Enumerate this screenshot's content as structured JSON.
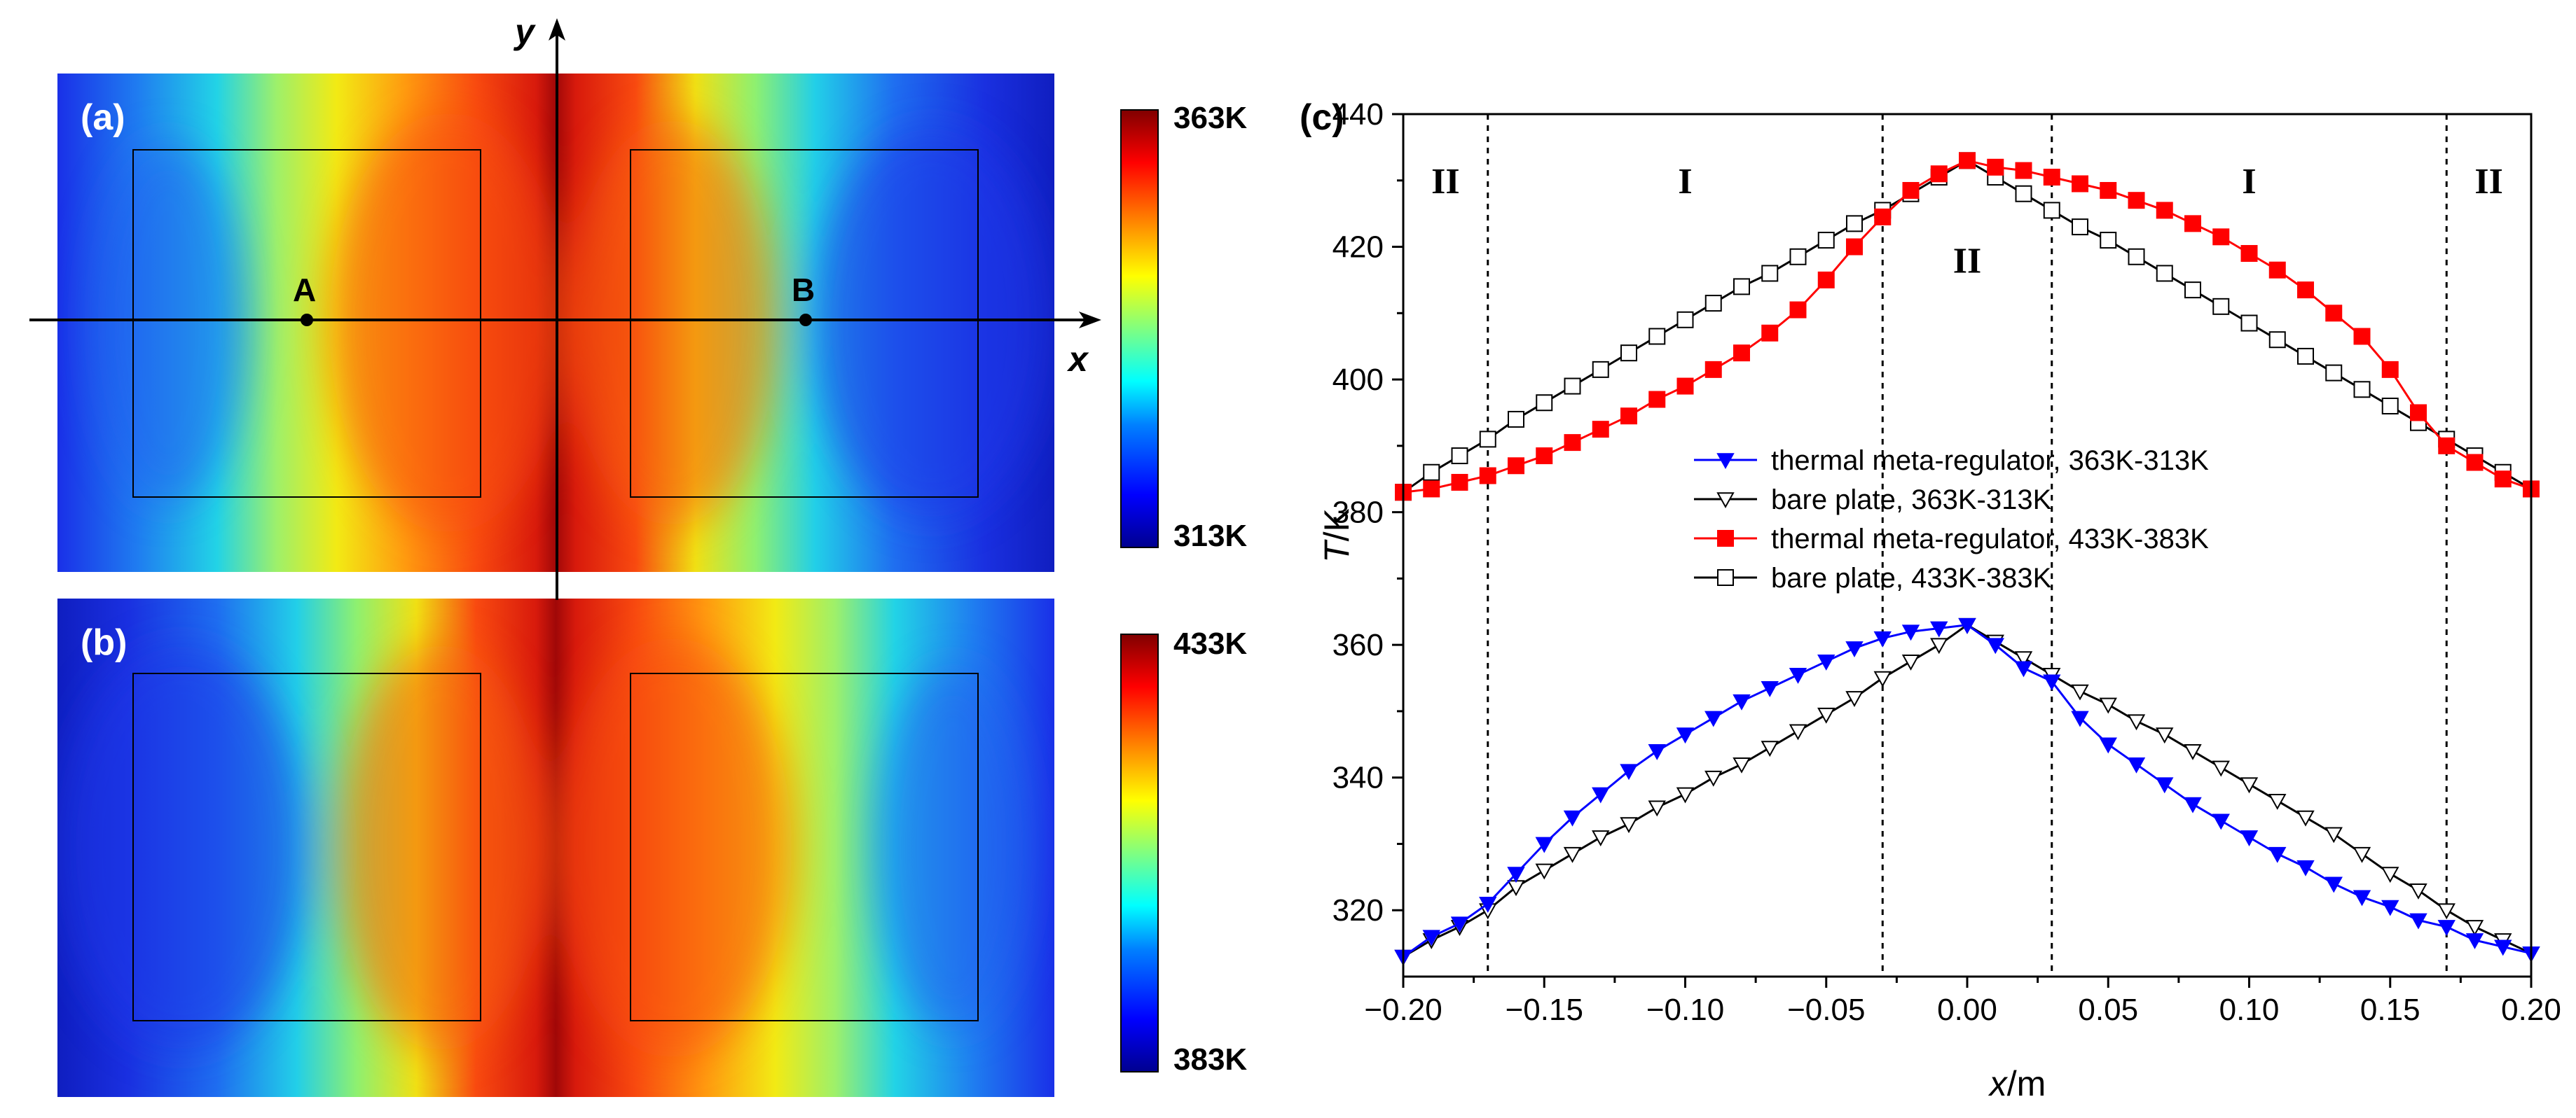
{
  "panel_a": {
    "label": "(a)",
    "point_a": "A",
    "point_b": "B",
    "axis_x": "x",
    "axis_y": "y",
    "colorbar": {
      "max": "363K",
      "min": "313K"
    }
  },
  "panel_b": {
    "label": "(b)",
    "colorbar": {
      "max": "433K",
      "min": "383K"
    }
  },
  "colors": {
    "blue_series": "#0000ff",
    "red_series": "#ff0000",
    "black_series": "#000000"
  },
  "chart_data": {
    "type": "line",
    "panel_label": "(c)",
    "title": "",
    "xlabel_var": "x",
    "xlabel_unit": "/m",
    "ylabel_var": "T",
    "ylabel_unit": "/K",
    "xlim": [
      -0.2,
      0.2
    ],
    "ylim": [
      310,
      440
    ],
    "xticks": [
      -0.2,
      -0.15,
      -0.1,
      -0.05,
      0.0,
      0.05,
      0.1,
      0.15,
      0.2
    ],
    "xtick_labels": [
      "−0.20",
      "−0.15",
      "−0.10",
      "−0.05",
      "0.00",
      "0.05",
      "0.10",
      "0.15",
      "0.20"
    ],
    "yticks": [
      320,
      340,
      360,
      380,
      400,
      420,
      440
    ],
    "ytick_labels": [
      "320",
      "340",
      "360",
      "380",
      "400",
      "420",
      "440"
    ],
    "region_dividers": [
      -0.17,
      -0.03,
      0.03,
      0.17
    ],
    "region_labels": [
      {
        "text": "II",
        "x": -0.185,
        "y": 430
      },
      {
        "text": "I",
        "x": -0.1,
        "y": 430
      },
      {
        "text": "II",
        "x": 0.0,
        "y": 418
      },
      {
        "text": "I",
        "x": 0.1,
        "y": 430
      },
      {
        "text": "II",
        "x": 0.185,
        "y": 430
      }
    ],
    "legend_position": "center",
    "series": [
      {
        "name": "thermal meta-regulator, 363K-313K",
        "color": "#0000ff",
        "marker": "triangle-down-filled",
        "x": [
          -0.2,
          -0.19,
          -0.18,
          -0.17,
          -0.16,
          -0.15,
          -0.14,
          -0.13,
          -0.12,
          -0.11,
          -0.1,
          -0.09,
          -0.08,
          -0.07,
          -0.06,
          -0.05,
          -0.04,
          -0.03,
          -0.02,
          -0.01,
          0.0,
          0.01,
          0.02,
          0.03,
          0.04,
          0.05,
          0.06,
          0.07,
          0.08,
          0.09,
          0.1,
          0.11,
          0.12,
          0.13,
          0.14,
          0.15,
          0.16,
          0.17,
          0.18,
          0.19,
          0.2
        ],
        "y": [
          313,
          316,
          318,
          321,
          325.5,
          330,
          334,
          337.5,
          341,
          344,
          346.5,
          349,
          351.5,
          353.5,
          355.5,
          357.5,
          359.5,
          361,
          362,
          362.5,
          363,
          360,
          356.5,
          354.5,
          349,
          345,
          342,
          339,
          336,
          333.5,
          331,
          328.5,
          326.5,
          324,
          322,
          320.5,
          318.5,
          317.5,
          315.5,
          314.5,
          313.5
        ]
      },
      {
        "name": "bare plate, 363K-313K",
        "color": "#000000",
        "marker": "triangle-down-open",
        "x": [
          -0.2,
          -0.19,
          -0.18,
          -0.17,
          -0.16,
          -0.15,
          -0.14,
          -0.13,
          -0.12,
          -0.11,
          -0.1,
          -0.09,
          -0.08,
          -0.07,
          -0.06,
          -0.05,
          -0.04,
          -0.03,
          -0.02,
          -0.01,
          0.0,
          0.01,
          0.02,
          0.03,
          0.04,
          0.05,
          0.06,
          0.07,
          0.08,
          0.09,
          0.1,
          0.11,
          0.12,
          0.13,
          0.14,
          0.15,
          0.16,
          0.17,
          0.18,
          0.19,
          0.2
        ],
        "y": [
          313,
          315.5,
          317.5,
          320,
          323.5,
          326,
          328.5,
          331,
          333,
          335.5,
          337.5,
          340,
          342,
          344.5,
          347,
          349.5,
          352,
          355,
          357.5,
          360,
          363,
          360.5,
          358,
          355.5,
          353,
          351,
          348.5,
          346.5,
          344,
          341.5,
          339,
          336.5,
          334,
          331.5,
          328.5,
          325.5,
          323,
          320,
          317.5,
          315.5,
          313.5
        ]
      },
      {
        "name": "thermal meta-regulator, 433K-383K",
        "color": "#ff0000",
        "marker": "square-filled",
        "x": [
          -0.2,
          -0.19,
          -0.18,
          -0.17,
          -0.16,
          -0.15,
          -0.14,
          -0.13,
          -0.12,
          -0.11,
          -0.1,
          -0.09,
          -0.08,
          -0.07,
          -0.06,
          -0.05,
          -0.04,
          -0.03,
          -0.02,
          -0.01,
          0.0,
          0.01,
          0.02,
          0.03,
          0.04,
          0.05,
          0.06,
          0.07,
          0.08,
          0.09,
          0.1,
          0.11,
          0.12,
          0.13,
          0.14,
          0.15,
          0.16,
          0.17,
          0.18,
          0.19,
          0.2
        ],
        "y": [
          383,
          383.5,
          384.5,
          385.5,
          387,
          388.5,
          390.5,
          392.5,
          394.5,
          397,
          399,
          401.5,
          404,
          407,
          410.5,
          415,
          420,
          424.5,
          428.5,
          431,
          433,
          432,
          431.5,
          430.5,
          429.5,
          428.5,
          427,
          425.5,
          423.5,
          421.5,
          419,
          416.5,
          413.5,
          410,
          406.5,
          401.5,
          395,
          390,
          387.5,
          385,
          383.5
        ]
      },
      {
        "name": "bare plate, 433K-383K",
        "color": "#000000",
        "marker": "square-open",
        "x": [
          -0.2,
          -0.19,
          -0.18,
          -0.17,
          -0.16,
          -0.15,
          -0.14,
          -0.13,
          -0.12,
          -0.11,
          -0.1,
          -0.09,
          -0.08,
          -0.07,
          -0.06,
          -0.05,
          -0.04,
          -0.03,
          -0.02,
          -0.01,
          0.0,
          0.01,
          0.02,
          0.03,
          0.04,
          0.05,
          0.06,
          0.07,
          0.08,
          0.09,
          0.1,
          0.11,
          0.12,
          0.13,
          0.14,
          0.15,
          0.16,
          0.17,
          0.18,
          0.19,
          0.2
        ],
        "y": [
          383,
          386,
          388.5,
          391,
          394,
          396.5,
          399,
          401.5,
          404,
          406.5,
          409,
          411.5,
          414,
          416,
          418.5,
          421,
          423.5,
          425.5,
          428,
          430.5,
          433,
          430.5,
          428,
          425.5,
          423,
          421,
          418.5,
          416,
          413.5,
          411,
          408.5,
          406,
          403.5,
          401,
          398.5,
          396,
          393.5,
          391,
          388.5,
          386,
          383.5
        ]
      }
    ]
  }
}
